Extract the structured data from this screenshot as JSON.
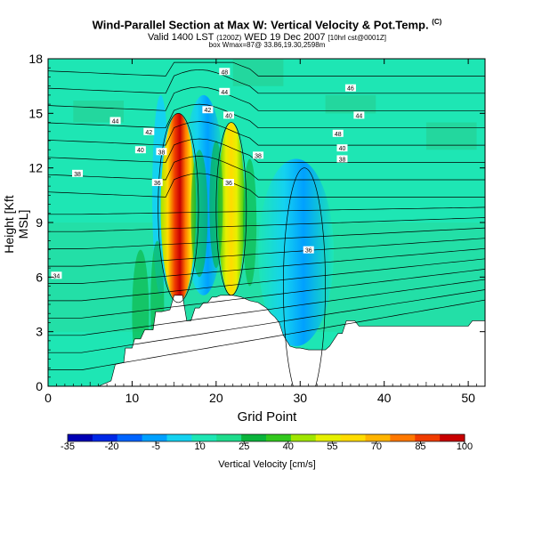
{
  "title": {
    "main": "Wind-Parallel Section at Max W: Vertical Velocity & Pot.Temp.",
    "main_sup": "(C)",
    "valid": "Valid 1400 LST",
    "valid_small": "(1200Z)",
    "valid_date": "WED 19 Dec 2007",
    "valid_suffix": "[10hrl cst@0001Z]",
    "maxline": "box Wmax=87@ 33.86,19.30,2598m"
  },
  "chart_data": {
    "type": "contour",
    "xlabel": "Grid Point",
    "ylabel": "Height [Kft MSL]",
    "xlim": [
      0,
      52
    ],
    "ylim": [
      0,
      18
    ],
    "xticks": [
      0,
      10,
      20,
      30,
      40,
      50
    ],
    "yticks": [
      0,
      3,
      6,
      9,
      12,
      15,
      18
    ],
    "colorbar": {
      "label": "Vertical Velocity [cm/s]",
      "ticks": [
        -35,
        -20,
        -5,
        10,
        25,
        40,
        55,
        70,
        85,
        100
      ],
      "colors": [
        "#0000b4",
        "#0028e6",
        "#0064ff",
        "#00a0ff",
        "#14d2f0",
        "#1ee6b4",
        "#1edc8c",
        "#0ab43c",
        "#32c81e",
        "#a0e600",
        "#e6f000",
        "#ffdc00",
        "#ffb400",
        "#ff7800",
        "#f03c00",
        "#c80000"
      ]
    },
    "terrain": [
      [
        0,
        0
      ],
      [
        6,
        0
      ],
      [
        7.5,
        0.3
      ],
      [
        8,
        1.2
      ],
      [
        9,
        1.3
      ],
      [
        9.2,
        2.1
      ],
      [
        10,
        2.1
      ],
      [
        10.3,
        2.6
      ],
      [
        11,
        2.6
      ],
      [
        11.5,
        3.1
      ],
      [
        12.5,
        3.1
      ],
      [
        12.8,
        4.1
      ],
      [
        13.5,
        4.1
      ],
      [
        14.5,
        4.2
      ],
      [
        15,
        5.0
      ],
      [
        16,
        5.0
      ],
      [
        16.5,
        3.6
      ],
      [
        17,
        3.6
      ],
      [
        17.5,
        4.3
      ],
      [
        18,
        4.3
      ],
      [
        18.5,
        4.6
      ],
      [
        19,
        4.6
      ],
      [
        19.5,
        4.9
      ],
      [
        20,
        4.9
      ],
      [
        20.5,
        5.0
      ],
      [
        22,
        5.0
      ],
      [
        23,
        4.9
      ],
      [
        24,
        4.7
      ],
      [
        25,
        4.6
      ],
      [
        26,
        4.3
      ],
      [
        26.5,
        4.0
      ],
      [
        27,
        3.8
      ],
      [
        27.5,
        3.5
      ],
      [
        28,
        2.8
      ],
      [
        28.8,
        2.2
      ],
      [
        29.5,
        2.1
      ],
      [
        30,
        2.1
      ],
      [
        31,
        2.0
      ],
      [
        32,
        2.0
      ],
      [
        33,
        2.0
      ],
      [
        33.5,
        2.2
      ],
      [
        34.5,
        2.9
      ],
      [
        35,
        2.9
      ],
      [
        35.5,
        3.6
      ],
      [
        36.5,
        3.6
      ],
      [
        37,
        3.3
      ],
      [
        39,
        3.3
      ],
      [
        41,
        3.3
      ],
      [
        43,
        3.3
      ],
      [
        50,
        3.3
      ],
      [
        50.5,
        3.6
      ],
      [
        52,
        3.6
      ],
      [
        52,
        0
      ]
    ],
    "updraft_cores": [
      {
        "x": 15.5,
        "ymin": 4.6,
        "ymax": 15.0,
        "wmax": 100,
        "wmin": 60
      },
      {
        "x": 21.8,
        "ymin": 5.0,
        "ymax": 14.5,
        "wmax": 65,
        "wmin": 40
      }
    ],
    "downdraft_regions": [
      {
        "x": 29.5,
        "ymin": 2.2,
        "ymax": 12.5,
        "wmin": -15
      },
      {
        "x": 18.5,
        "ymin": 5.0,
        "ymax": 16.0,
        "wmin": -10
      }
    ],
    "theta_labels": [
      {
        "text": "44",
        "x": 8,
        "y": 14.6
      },
      {
        "text": "44",
        "x": 21,
        "y": 16.2
      },
      {
        "text": "48",
        "x": 21,
        "y": 17.3
      },
      {
        "text": "46",
        "x": 36,
        "y": 16.4
      },
      {
        "text": "44",
        "x": 37,
        "y": 14.9
      },
      {
        "text": "42",
        "x": 12,
        "y": 14.0
      },
      {
        "text": "40",
        "x": 11,
        "y": 13.0
      },
      {
        "text": "38",
        "x": 13.5,
        "y": 12.9
      },
      {
        "text": "42",
        "x": 19,
        "y": 15.2
      },
      {
        "text": "40",
        "x": 21.5,
        "y": 14.9
      },
      {
        "text": "48",
        "x": 34.5,
        "y": 13.9
      },
      {
        "text": "40",
        "x": 35,
        "y": 13.1
      },
      {
        "text": "38",
        "x": 35,
        "y": 12.5
      },
      {
        "text": "38",
        "x": 25,
        "y": 12.7
      },
      {
        "text": "38",
        "x": 3.5,
        "y": 11.7
      },
      {
        "text": "36",
        "x": 13,
        "y": 11.2
      },
      {
        "text": "36",
        "x": 21.5,
        "y": 11.2
      },
      {
        "text": "36",
        "x": 31,
        "y": 7.5
      },
      {
        "text": "34",
        "x": 1,
        "y": 6.1
      }
    ]
  }
}
